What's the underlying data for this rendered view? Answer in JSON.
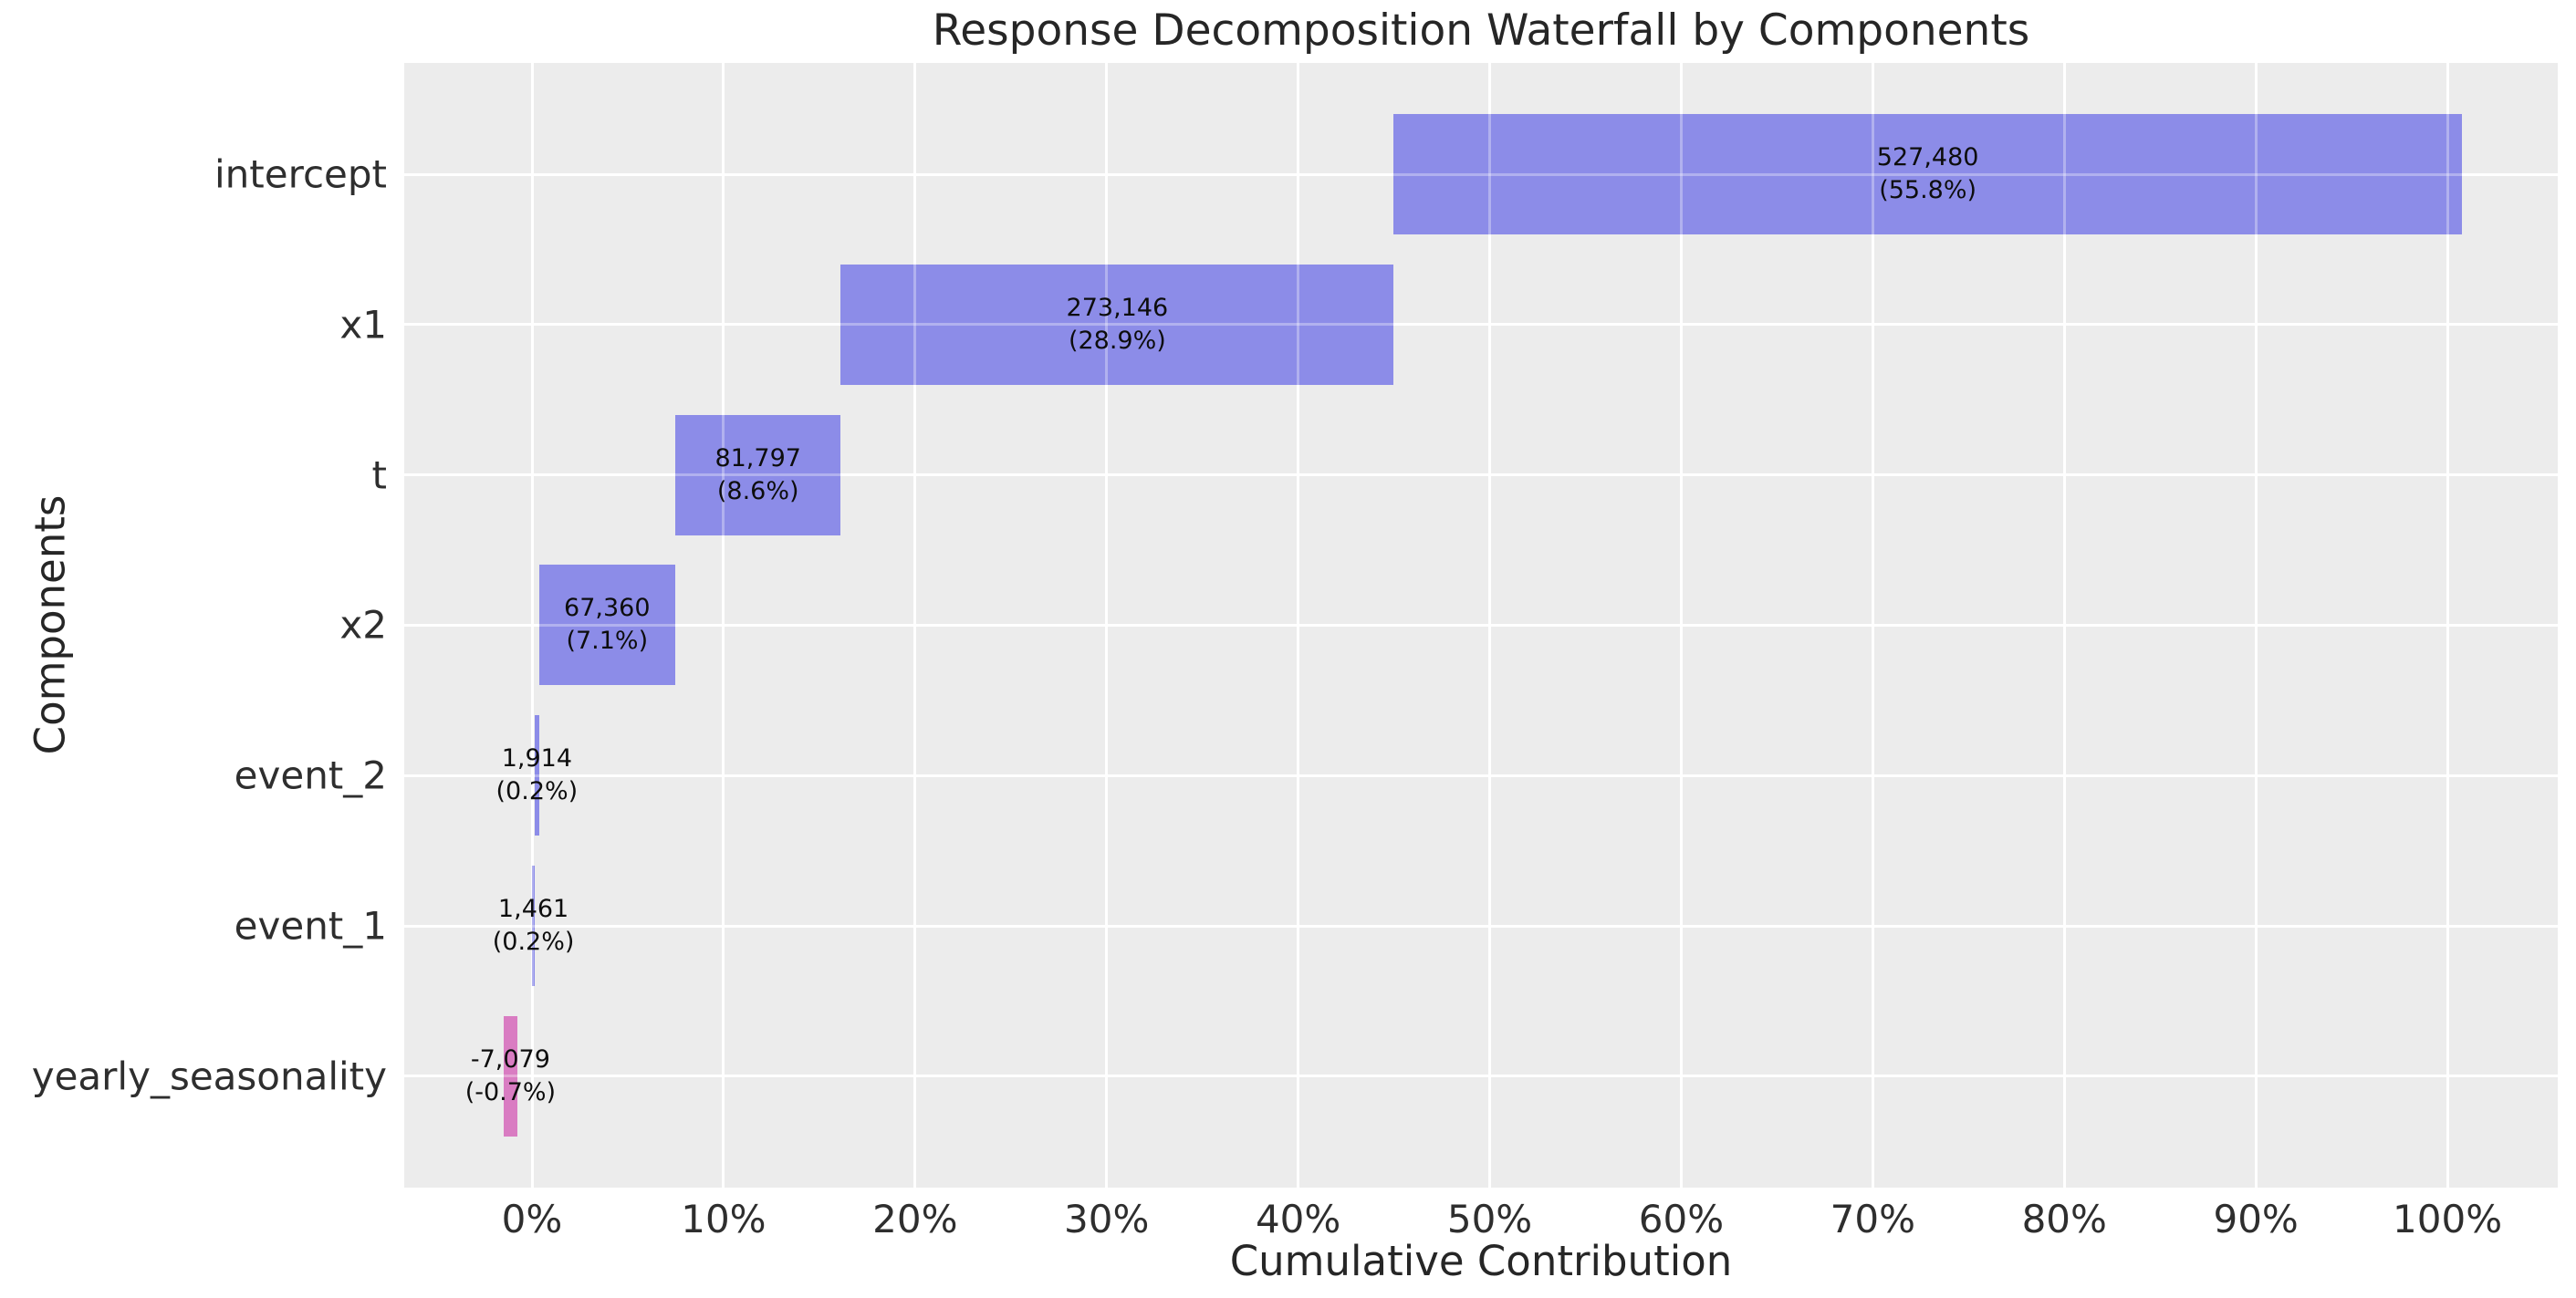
{
  "colors": {
    "positive_bar": "#8c8ce8",
    "negative_bar": "#d97cc2",
    "plot_background": "#ececec",
    "gridline": "#ffffff",
    "text": "#262626",
    "annotation_text": "#0d0d0d"
  },
  "chart_data": {
    "type": "bar",
    "subtype": "horizontal-waterfall",
    "title": "Response Decomposition Waterfall by Components",
    "xlabel": "Cumulative Contribution",
    "ylabel": "Components",
    "grid": true,
    "xlim_pct": [
      -6.67,
      105.76
    ],
    "x_ticks": [
      {
        "value": 0,
        "label": "0%"
      },
      {
        "value": 10,
        "label": "10%"
      },
      {
        "value": 20,
        "label": "20%"
      },
      {
        "value": 30,
        "label": "30%"
      },
      {
        "value": 40,
        "label": "40%"
      },
      {
        "value": 50,
        "label": "50%"
      },
      {
        "value": 60,
        "label": "60%"
      },
      {
        "value": 70,
        "label": "70%"
      },
      {
        "value": 80,
        "label": "80%"
      },
      {
        "value": 90,
        "label": "90%"
      },
      {
        "value": 100,
        "label": "100%"
      }
    ],
    "components": [
      {
        "label": "intercept",
        "value": 527480,
        "value_label": "527,480",
        "pct_label": "(55.8%)",
        "bar_start_pct": 44.99,
        "bar_end_pct": 100.75,
        "sign": "positive"
      },
      {
        "label": "x1",
        "value": 273146,
        "value_label": "273,146",
        "pct_label": "(28.9%)",
        "bar_start_pct": 16.12,
        "bar_end_pct": 44.99,
        "sign": "positive"
      },
      {
        "label": "t",
        "value": 81797,
        "value_label": "81,797",
        "pct_label": "(8.6%)",
        "bar_start_pct": 7.48,
        "bar_end_pct": 16.12,
        "sign": "positive"
      },
      {
        "label": "x2",
        "value": 67360,
        "value_label": "67,360",
        "pct_label": "(7.1%)",
        "bar_start_pct": 0.36,
        "bar_end_pct": 7.48,
        "sign": "positive"
      },
      {
        "label": "event_2",
        "value": 1914,
        "value_label": "1,914",
        "pct_label": "(0.2%)",
        "bar_start_pct": 0.15,
        "bar_end_pct": 0.36,
        "sign": "positive"
      },
      {
        "label": "event_1",
        "value": 1461,
        "value_label": "1,461",
        "pct_label": "(0.2%)",
        "bar_start_pct": 0.0,
        "bar_end_pct": 0.15,
        "sign": "positive"
      },
      {
        "label": "yearly_seasonality",
        "value": -7079,
        "value_label": "-7,079",
        "pct_label": "(-0.7%)",
        "bar_start_pct": -1.5,
        "bar_end_pct": -0.75,
        "sign": "negative"
      }
    ]
  }
}
